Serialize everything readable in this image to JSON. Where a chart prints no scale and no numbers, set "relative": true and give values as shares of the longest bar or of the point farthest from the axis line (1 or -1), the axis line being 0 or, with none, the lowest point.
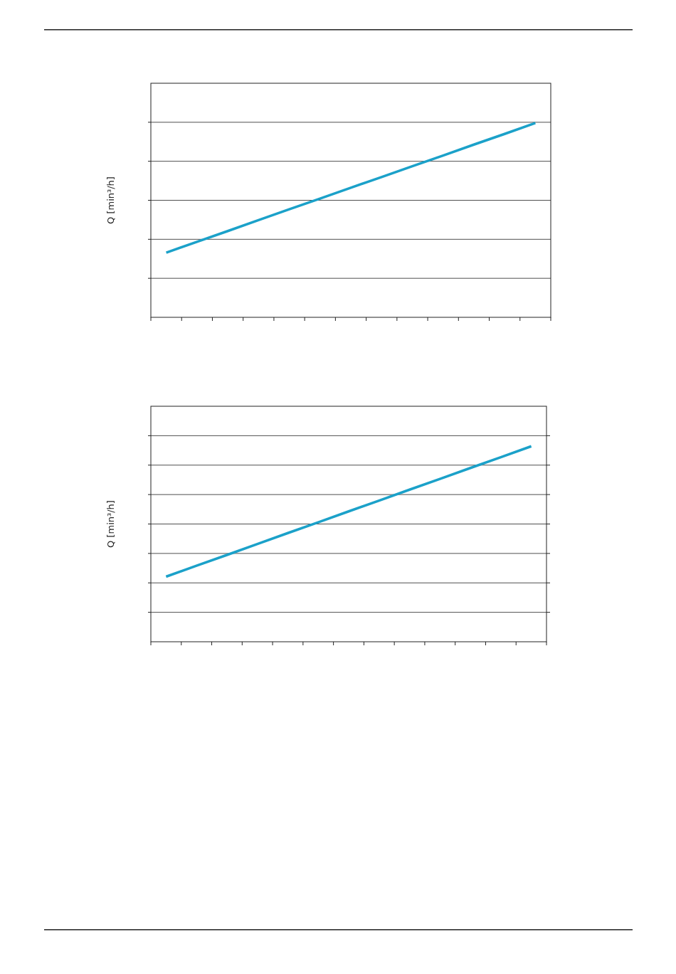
{
  "chart_data": [
    {
      "type": "line",
      "ylabel": "Q [min³/h]",
      "relative": true,
      "grid": "y",
      "categories": [
        null,
        null,
        null,
        null,
        null,
        null,
        null,
        null,
        null,
        null,
        null,
        null,
        null
      ],
      "color": "#1ba1c9",
      "values": [
        0.333,
        0.389,
        0.444,
        0.5,
        0.556,
        0.611,
        0.667,
        0.722,
        0.778,
        0.833,
        0.889,
        0.944,
        1
      ]
    },
    {
      "type": "line",
      "ylabel": "Q [min³/h]",
      "relative": true,
      "grid": "y",
      "categories": [
        null,
        null,
        null,
        null,
        null,
        null,
        null,
        null,
        null,
        null,
        null,
        null,
        null
      ],
      "color": "#1ba1c9",
      "values": [
        0.333,
        0.389,
        0.444,
        0.5,
        0.556,
        0.611,
        0.667,
        0.722,
        0.778,
        0.833,
        0.889,
        0.944,
        1
      ]
    }
  ]
}
